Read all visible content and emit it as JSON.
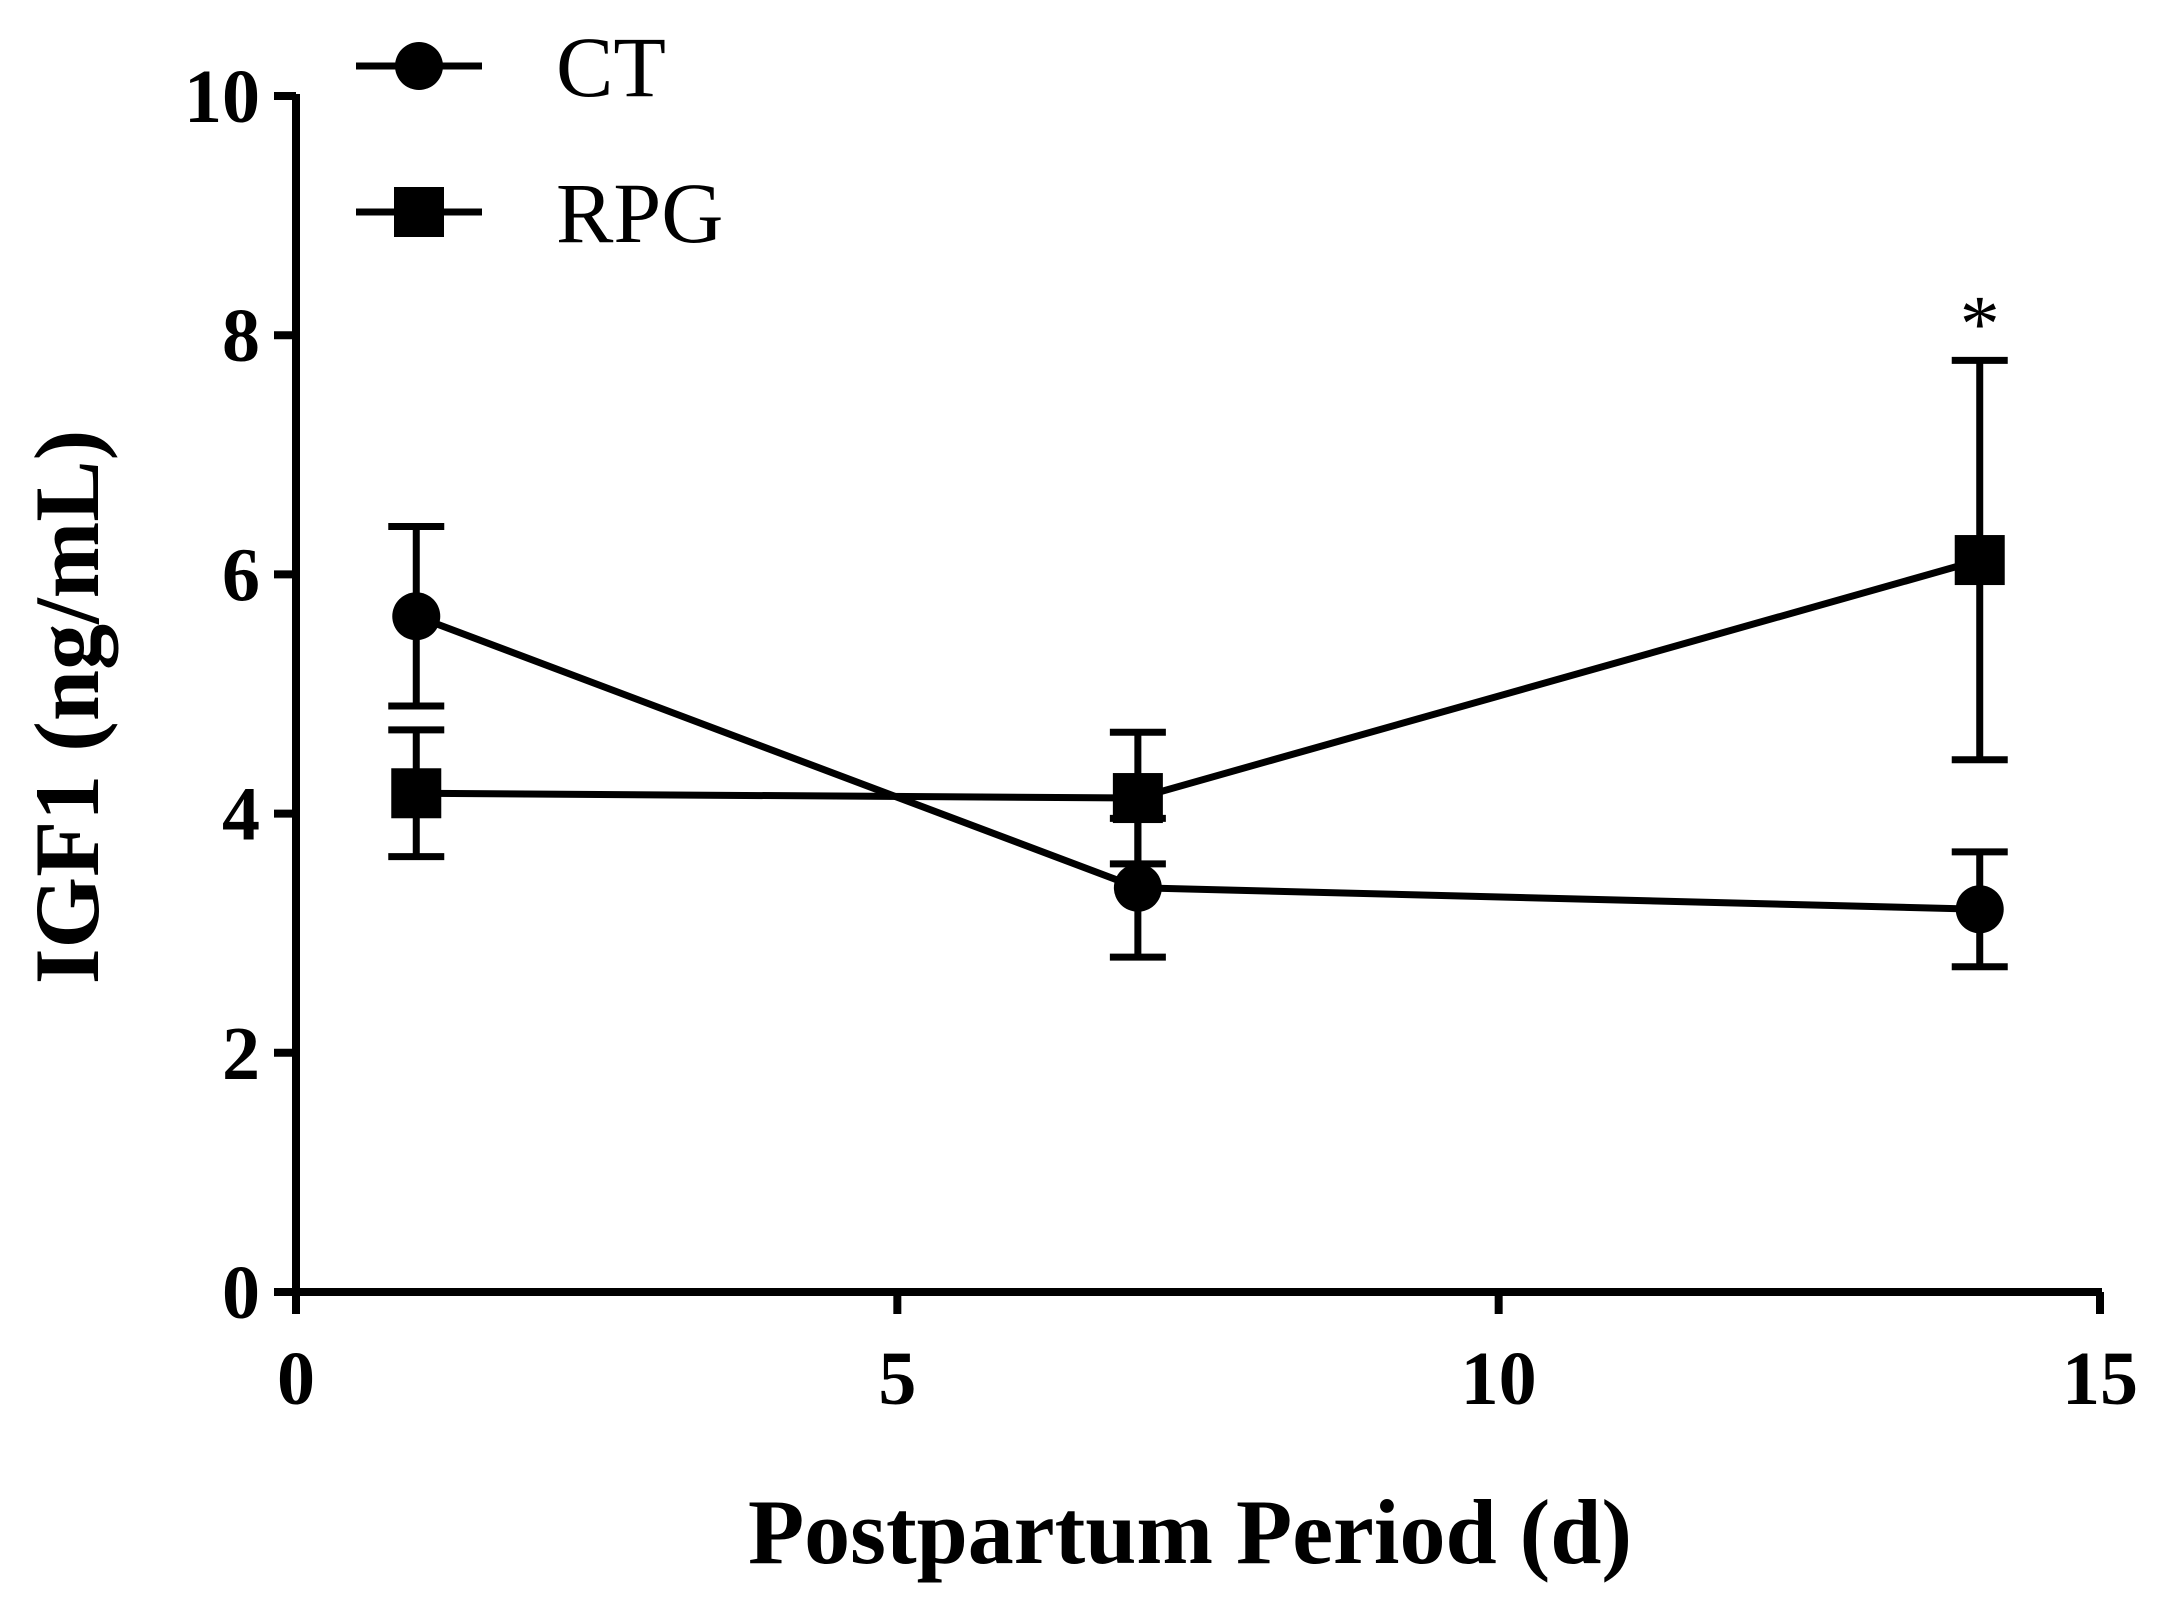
{
  "chart_data": {
    "type": "line",
    "title": "",
    "xlabel": "Postpartum Period (d)",
    "ylabel": "IGF1 (ng/mL)",
    "xlim": [
      0,
      15
    ],
    "ylim": [
      0,
      10
    ],
    "xticks": [
      0,
      5,
      10,
      15
    ],
    "yticks": [
      0,
      2,
      4,
      6,
      8,
      10
    ],
    "grid": false,
    "legend_position": "top-left",
    "series": [
      {
        "name": "CT",
        "marker": "circle",
        "x": [
          1,
          7,
          14
        ],
        "y": [
          5.65,
          3.38,
          3.2
        ],
        "error": [
          0.75,
          0.58,
          0.48
        ]
      },
      {
        "name": "RPG",
        "marker": "square",
        "x": [
          1,
          7,
          14
        ],
        "y": [
          4.17,
          4.13,
          6.12
        ],
        "error": [
          0.53,
          0.55,
          1.67
        ]
      }
    ],
    "annotations": [
      {
        "text": "*",
        "x": 14,
        "y": 7.79
      }
    ]
  }
}
